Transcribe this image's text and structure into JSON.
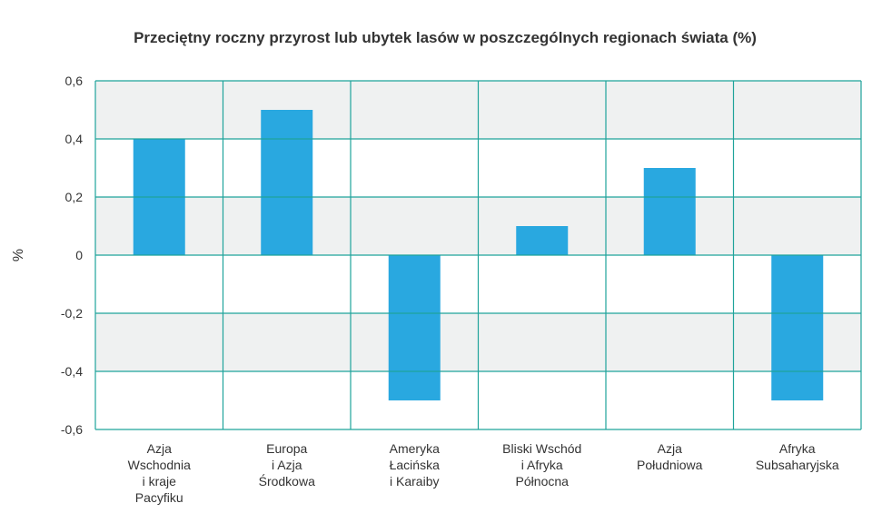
{
  "chart_data": {
    "type": "bar",
    "title": "Przeciętny roczny przyrost lub ubytek lasów w poszczególnych regionach świata (%)",
    "xlabel": "",
    "ylabel": "%",
    "ylim": [
      -0.6,
      0.6
    ],
    "yticks": [
      0.6,
      0.4,
      0.2,
      0,
      -0.2,
      -0.4,
      -0.6
    ],
    "ytick_labels": [
      "0,6",
      "0,4",
      "0,2",
      "0",
      "-0,2",
      "-0,4",
      "-0,6"
    ],
    "categories": [
      [
        "Azja",
        "Wschodnia",
        "i kraje",
        "Pacyfiku"
      ],
      [
        "Europa",
        "i Azja",
        "Środkowa"
      ],
      [
        "Ameryka",
        "Łacińska",
        "i Karaiby"
      ],
      [
        "Bliski Wschód",
        "i Afryka",
        "Północna"
      ],
      [
        "Azja",
        "Południowa"
      ],
      [
        "Afryka",
        "Subsaharyjska"
      ]
    ],
    "values": [
      0.4,
      0.5,
      -0.5,
      0.1,
      0.3,
      -0.5
    ],
    "grid": true,
    "colors": {
      "bar": "#29a8e0",
      "grid": "#1fa39b",
      "band": "#eff1f1"
    }
  }
}
